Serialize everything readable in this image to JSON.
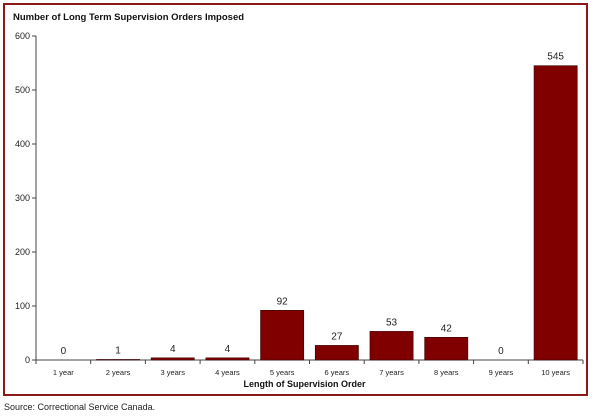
{
  "chart_data": {
    "type": "bar",
    "title": "Number of Long Term Supervision Orders Imposed",
    "xlabel": "Length of Supervision Order",
    "ylabel": "",
    "categories": [
      "1 year",
      "2 years",
      "3 years",
      "4 years",
      "5 years",
      "6 years",
      "7 years",
      "8 years",
      "9 years",
      "10 years"
    ],
    "values": [
      0,
      1,
      4,
      4,
      92,
      27,
      53,
      42,
      0,
      545
    ],
    "ylim": [
      0,
      600
    ],
    "yticks": [
      0,
      100,
      200,
      300,
      400,
      500,
      600
    ],
    "grid": false,
    "legend": "none",
    "bar_color": "#800000",
    "frame_color": "#8b1a1a"
  },
  "source": "Source: Correctional Service Canada."
}
